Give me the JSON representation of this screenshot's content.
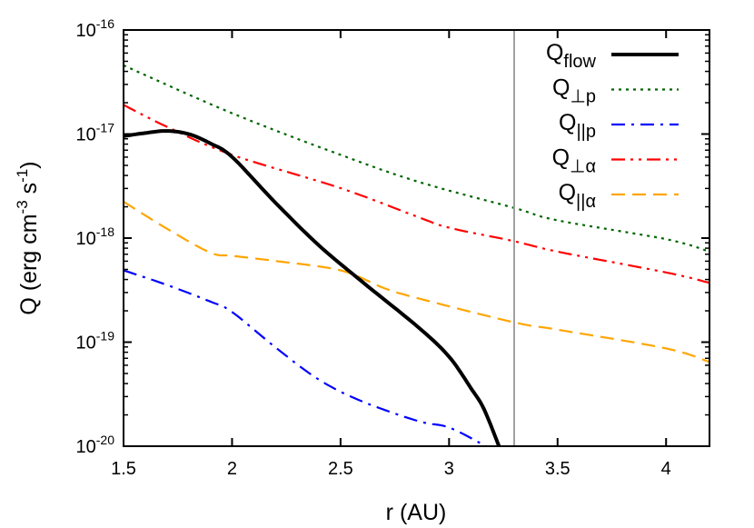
{
  "chart_data": {
    "type": "line",
    "title": "",
    "xlabel": "r (AU)",
    "ylabel": {
      "main": "Q (erg cm",
      "exp1": "-3",
      "mid": " s",
      "exp2": "-1",
      "end": ")"
    },
    "xlim": [
      1.5,
      4.2
    ],
    "ylim": [
      1e-20,
      1e-16
    ],
    "yscale": "log",
    "grid": false,
    "legend_position": "top-right",
    "xticks": [
      "1.5",
      "2",
      "2.5",
      "3",
      "3.5",
      "4"
    ],
    "yticks": [
      {
        "base": "10",
        "exp": "-16"
      },
      {
        "base": "10",
        "exp": "-17"
      },
      {
        "base": "10",
        "exp": "-18"
      },
      {
        "base": "10",
        "exp": "-19"
      },
      {
        "base": "10",
        "exp": "-20"
      }
    ],
    "vertical_line": {
      "x": 3.3,
      "color": "#a0a0a0"
    },
    "series": [
      {
        "name": "Q",
        "sub": "flow",
        "color": "#000000",
        "style": "solid",
        "x": [
          1.5,
          1.6,
          1.7,
          1.8,
          1.9,
          2.0,
          2.2,
          2.4,
          2.6,
          2.86,
          3.0,
          3.1,
          3.16,
          3.23
        ],
        "log10_y": [
          -17.02,
          -16.99,
          -16.97,
          -17.0,
          -17.09,
          -17.22,
          -17.66,
          -18.07,
          -18.42,
          -18.86,
          -19.14,
          -19.44,
          -19.64,
          -20.0
        ]
      },
      {
        "name": "Q",
        "sub": "⊥p",
        "color": "#006400",
        "style": "dotted",
        "x": [
          1.5,
          2.0,
          2.5,
          2.86,
          3.3,
          3.5,
          4.0,
          4.2
        ],
        "log10_y": [
          -16.34,
          -16.8,
          -17.2,
          -17.46,
          -17.71,
          -17.83,
          -18.01,
          -18.13
        ]
      },
      {
        "name": "Q",
        "sub": "||p",
        "color": "#0000ff",
        "style": "dashdot",
        "x": [
          1.5,
          1.7,
          1.9,
          2.0,
          2.2,
          2.4,
          2.6,
          2.86,
          3.0,
          3.17
        ],
        "log10_y": [
          -18.31,
          -18.45,
          -18.61,
          -18.71,
          -19.05,
          -19.36,
          -19.57,
          -19.76,
          -19.82,
          -20.0
        ]
      },
      {
        "name": "Q",
        "sub": "⊥α",
        "color": "#ff0000",
        "style": "dashdotdot",
        "x": [
          1.5,
          1.7,
          2.0,
          2.5,
          2.86,
          3.0,
          3.3,
          3.5,
          4.0,
          4.2
        ],
        "log10_y": [
          -16.72,
          -16.93,
          -17.2,
          -17.52,
          -17.8,
          -17.9,
          -18.03,
          -18.13,
          -18.33,
          -18.43
        ]
      },
      {
        "name": "Q",
        "sub": "||α",
        "color": "#ffa500",
        "style": "dashed",
        "x": [
          1.5,
          1.7,
          1.9,
          2.0,
          2.2,
          2.5,
          2.7,
          2.86,
          3.3,
          3.5,
          4.0,
          4.2
        ],
        "log10_y": [
          -17.65,
          -17.91,
          -18.14,
          -18.17,
          -18.22,
          -18.31,
          -18.48,
          -18.58,
          -18.81,
          -18.88,
          -19.06,
          -19.19
        ]
      }
    ]
  }
}
